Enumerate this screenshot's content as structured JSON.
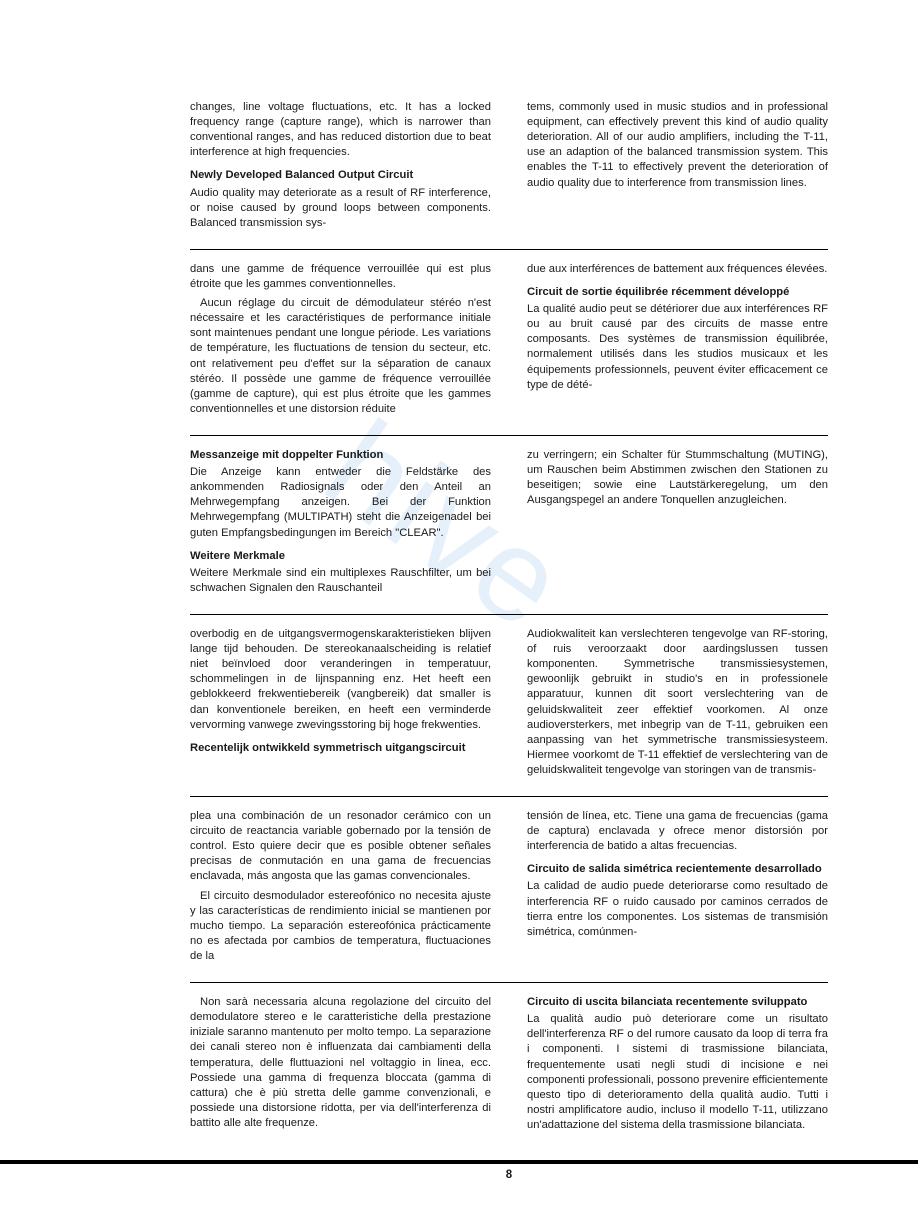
{
  "page_number": "8",
  "watermark": "hive",
  "sections": {
    "english": {
      "left": {
        "p1": "changes, line voltage fluctuations, etc. It has a locked frequency range (capture range), which is narrower than conventional ranges, and has reduced distortion due to beat interference at high frequencies.",
        "h1": "Newly Developed Balanced Output Circuit",
        "p2": "Audio quality may deteriorate as a result of RF interference, or noise caused by ground loops between components. Balanced transmission sys-"
      },
      "right": {
        "p1": "tems, commonly used in music studios and in professional equipment, can effectively prevent this kind of audio quality deterioration. All of our audio amplifiers, including the T-11, use an adaption of the balanced transmission system. This enables the T-11 to effectively prevent the deterioration of audio quality due to interference from transmission lines."
      }
    },
    "french": {
      "left": {
        "p1": "dans une gamme de fréquence verrouillée qui est plus étroite que les gammes conventionnelles.",
        "p2": "Aucun réglage du circuit de démodulateur stéréo n'est nécessaire et les caractéristiques de performance initiale sont maintenues pendant une longue période. Les variations de température, les fluctuations de tension du secteur, etc. ont relativement peu d'effet sur la séparation de canaux stéréo. Il possède une gamme de fréquence verrouillée (gamme de capture), qui est plus étroite que les gammes conventionnelles et une distorsion réduite"
      },
      "right": {
        "p1": "due aux interférences de battement aux fréquences élevées.",
        "h1": "Circuit de sortie équilibrée récemment développé",
        "p2": "La qualité audio peut se détériorer due aux interférences RF ou au bruit causé par des circuits de masse entre composants. Des systèmes de transmission équilibrée, normalement utilisés dans les studios musicaux et les équipements professionnels, peuvent éviter efficacement ce type de dété-"
      }
    },
    "german": {
      "left": {
        "h1": "Messanzeige mit doppelter Funktion",
        "p1": "Die Anzeige kann entweder die Feldstärke des ankommenden Radiosignals oder den Anteil an Mehrwegempfang anzeigen. Bei der Funktion Mehrwegempfang (MULTIPATH) steht die Anzeigenadel bei guten Empfangsbedingungen im Bereich \"CLEAR\".",
        "h2": "Weitere Merkmale",
        "p2": "Weitere Merkmale sind ein multiplexes Rauschfilter, um bei schwachen Signalen den Rauschanteil"
      },
      "right": {
        "p1": "zu verringern; ein Schalter für Stummschaltung (MUTING), um Rauschen beim Abstimmen zwischen den Stationen zu beseitigen; sowie eine Lautstärkeregelung, um den Ausgangspegel an andere Tonquellen anzugleichen."
      }
    },
    "dutch": {
      "left": {
        "p1": "overbodig en de uitgangsvermogenskarakteristieken blijven lange tijd behouden. De stereokanaalscheiding is relatief niet beïnvloed door veranderingen in temperatuur, schommelingen in de lijnspanning enz. Het heeft een geblokkeerd frekwentiebereik (vangbereik) dat smaller is dan konventionele bereiken, en heeft een verminderde vervorming vanwege zwevingsstoring bij hoge frekwenties.",
        "h1": "Recentelijk ontwikkeld symmetrisch uitgangscircuit"
      },
      "right": {
        "p1": "Audiokwaliteit kan verslechteren tengevolge van RF-storing, of ruis veroorzaakt door aardingslussen tussen komponenten. Symmetrische transmissiesystemen, gewoonlijk gebruikt in studio's en in professionele apparatuur, kunnen dit soort verslechtering van de geluidskwaliteit zeer effektief voorkomen. Al onze audioversterkers, met inbegrip van de T-11, gebruiken een aanpassing van het symmetrische transmissiesysteem. Hiermee voorkomt de T-11 effektief de verslechtering van de geluidskwaliteit tengevolge van storingen van de transmis-"
      }
    },
    "spanish": {
      "left": {
        "p1": "plea una combinación de un resonador cerámico con un circuito de reactancia variable gobernado por la tensión de control. Esto quiere decir que es posible obtener señales precisas de conmutación en una gama de frecuencias enclavada, más angosta que las gamas convencionales.",
        "p2": "El circuito desmodulador estereofónico no necesita ajuste y las características de rendimiento inicial se mantienen por mucho tiempo. La separación estereofónica prácticamente no es afectada por cambios de temperatura, fluctuaciones de la"
      },
      "right": {
        "p1": "tensión de línea, etc. Tiene una gama de frecuencias (gama de captura) enclavada y ofrece menor distorsión por interferencia de batido a altas frecuencias.",
        "h1": "Circuito de salida simétrica recientemente desarrollado",
        "p2": "La calidad de audio puede deteriorarse como resultado de interferencia RF o ruido causado por caminos cerrados de tierra entre los componentes. Los sistemas de transmisión simétrica, comúnmen-"
      }
    },
    "italian": {
      "left": {
        "p1": "Non sarà necessaria alcuna regolazione del circuito del demodulatore stereo e le caratteristiche della prestazione iniziale saranno mantenuto per molto tempo. La separazione dei canali stereo non è influenzata dai cambiamenti della temperatura, delle fluttuazioni nel voltaggio in linea, ecc. Possiede una gamma di frequenza bloccata (gamma di cattura) che è più stretta delle gamme convenzionali, e possiede una distorsione ridotta, per via dell'interferenza di battito alle alte frequenze."
      },
      "right": {
        "h1": "Circuito di uscita bilanciata recentemente sviluppato",
        "p1": "La qualità audio può deteriorare come un risultato dell'interferenza RF o del rumore causato da loop di terra fra i componenti. I sistemi di trasmissione bilanciata, frequentemente usati negli studi di incisione e nei componenti professionali, possono prevenire efficientemente questo tipo di deterioramento della qualità audio. Tutti i nostri amplificatore audio, incluso il modello T-11, utilizzano un'adattazione del sistema della trasmissione bilanciata."
      }
    }
  }
}
